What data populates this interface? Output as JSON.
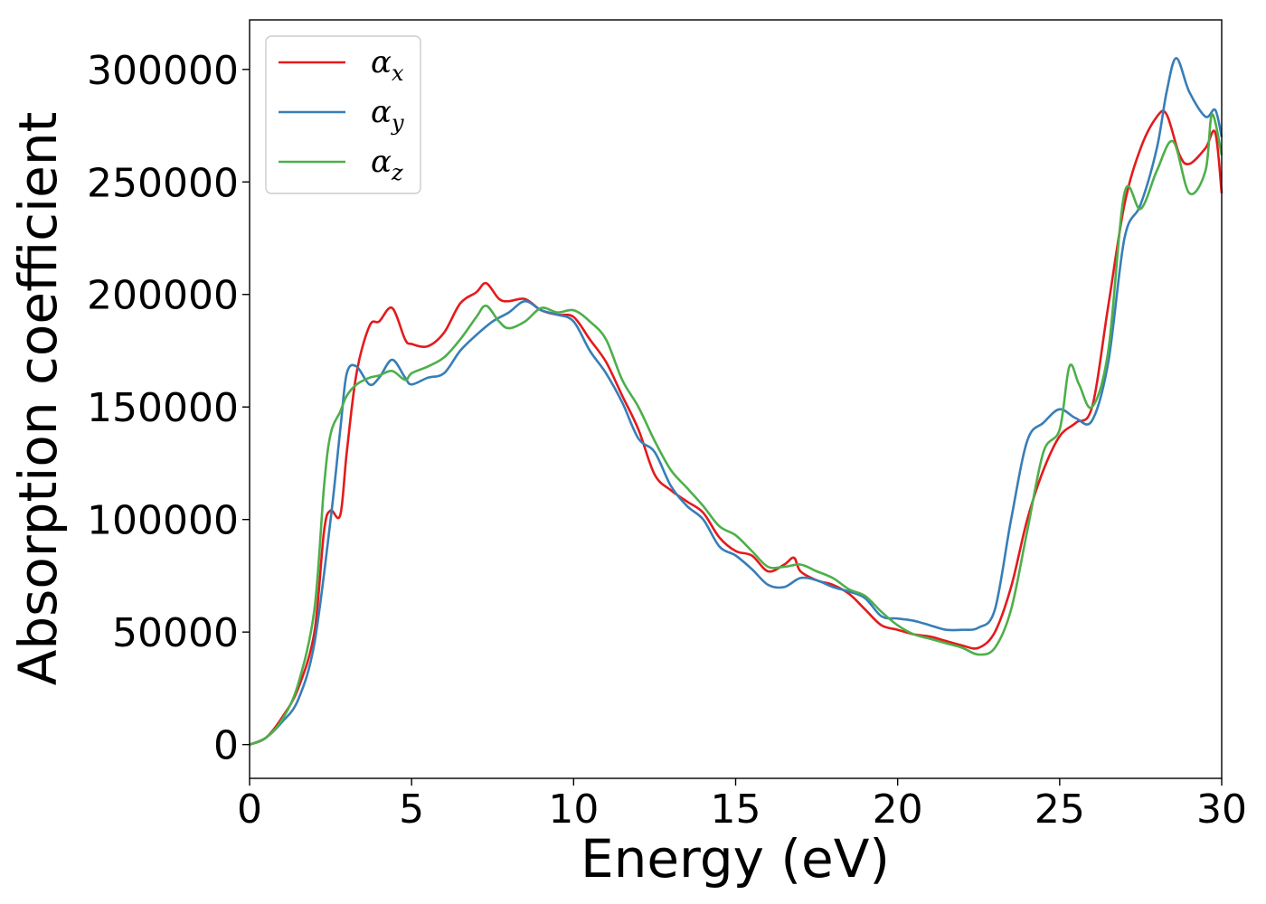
{
  "chart_data": {
    "type": "line",
    "title": "",
    "xlabel": "Energy (eV)",
    "ylabel": "Absorption coefficient",
    "xlim": [
      0,
      30
    ],
    "ylim": [
      -15000,
      322000
    ],
    "xticks": [
      0,
      5,
      10,
      15,
      20,
      25,
      30
    ],
    "yticks": [
      0,
      50000,
      100000,
      150000,
      200000,
      250000,
      300000
    ],
    "grid": false,
    "legend_position": "top-left",
    "series": [
      {
        "name": "αx",
        "label_base": "α",
        "label_sub": "x",
        "color": "#e41a1c",
        "x": [
          0,
          0.5,
          1,
          1.5,
          2,
          2.3,
          2.5,
          2.8,
          3,
          3.3,
          3.7,
          4,
          4.4,
          4.8,
          5,
          5.5,
          6,
          6.5,
          7,
          7.3,
          7.7,
          8,
          8.5,
          9,
          9.5,
          10,
          10.5,
          11,
          11.5,
          12,
          12.5,
          13,
          13.5,
          14,
          14.5,
          15,
          15.5,
          16,
          16.5,
          16.8,
          17,
          17.5,
          18,
          18.5,
          19,
          19.5,
          20,
          20.5,
          21,
          21.5,
          22,
          22.5,
          23,
          23.5,
          24,
          24.5,
          25,
          25.5,
          26,
          26.5,
          27,
          27.5,
          28,
          28.3,
          28.7,
          29,
          29.5,
          29.8,
          30
        ],
        "y": [
          0,
          3000,
          12000,
          25000,
          50000,
          95000,
          104000,
          102000,
          130000,
          165000,
          186000,
          188000,
          194000,
          180000,
          178000,
          177000,
          183000,
          196000,
          201000,
          205000,
          198000,
          197000,
          198000,
          193000,
          191000,
          190000,
          180000,
          170000,
          155000,
          140000,
          120000,
          113000,
          108000,
          103000,
          92000,
          86000,
          84000,
          77000,
          80000,
          83000,
          77000,
          73000,
          71000,
          67000,
          60000,
          53000,
          51000,
          49000,
          48000,
          46000,
          44000,
          43000,
          50000,
          70000,
          100000,
          122000,
          137000,
          143000,
          150000,
          195000,
          240000,
          265000,
          279000,
          280000,
          262000,
          258000,
          265000,
          272000,
          245000
        ]
      },
      {
        "name": "αy",
        "label_base": "α",
        "label_sub": "y",
        "color": "#377eb8",
        "x": [
          0,
          0.5,
          1,
          1.5,
          2,
          2.5,
          2.8,
          3,
          3.3,
          3.7,
          4,
          4.4,
          4.8,
          5,
          5.5,
          6,
          6.5,
          7,
          7.5,
          8,
          8.5,
          9,
          9.5,
          10,
          10.5,
          11,
          11.5,
          12,
          12.5,
          13,
          13.5,
          14,
          14.5,
          15,
          15.5,
          16,
          16.5,
          17,
          17.5,
          18,
          18.5,
          19,
          19.5,
          20,
          20.5,
          21,
          21.5,
          22,
          22.5,
          23,
          23.5,
          24,
          24.5,
          25,
          25.5,
          26,
          26.5,
          27,
          27.5,
          28,
          28.3,
          28.6,
          29,
          29.5,
          29.8,
          30
        ],
        "y": [
          0,
          3000,
          10000,
          20000,
          45000,
          100000,
          140000,
          165000,
          168000,
          160000,
          163000,
          171000,
          163000,
          160000,
          163000,
          165000,
          175000,
          182000,
          188000,
          192000,
          197000,
          193000,
          191000,
          188000,
          175000,
          165000,
          152000,
          136000,
          130000,
          115000,
          106000,
          100000,
          88000,
          84000,
          78000,
          71000,
          70000,
          74000,
          73000,
          70000,
          68000,
          65000,
          57000,
          56000,
          55000,
          53000,
          51000,
          51000,
          52000,
          60000,
          100000,
          135000,
          143000,
          149000,
          145000,
          144000,
          170000,
          225000,
          240000,
          265000,
          290000,
          305000,
          290000,
          279000,
          282000,
          270000
        ]
      },
      {
        "name": "αz",
        "label_base": "α",
        "label_sub": "z",
        "color": "#4daf4a",
        "x": [
          0,
          0.5,
          1,
          1.5,
          2,
          2.3,
          2.5,
          2.8,
          3,
          3.3,
          3.7,
          4,
          4.4,
          4.8,
          5,
          5.5,
          6,
          6.5,
          7,
          7.3,
          7.7,
          8,
          8.5,
          9,
          9.5,
          10,
          10.5,
          11,
          11.5,
          12,
          12.5,
          13,
          13.5,
          14,
          14.5,
          15,
          15.5,
          16,
          16.5,
          17,
          17.5,
          18,
          18.5,
          19,
          19.5,
          20,
          20.5,
          21,
          21.5,
          22,
          22.5,
          23,
          23.5,
          24,
          24.5,
          25,
          25.3,
          25.6,
          26,
          26.5,
          27,
          27.5,
          28,
          28.5,
          29,
          29.5,
          29.7,
          30
        ],
        "y": [
          0,
          3000,
          11000,
          27000,
          60000,
          115000,
          138000,
          148000,
          155000,
          160000,
          163000,
          164000,
          166000,
          162000,
          165000,
          168000,
          172000,
          180000,
          190000,
          195000,
          188000,
          185000,
          188000,
          194000,
          192000,
          193000,
          188000,
          180000,
          162000,
          150000,
          135000,
          122000,
          114000,
          106000,
          97000,
          93000,
          86000,
          79000,
          79000,
          80000,
          77000,
          74000,
          69000,
          66000,
          59000,
          53000,
          49000,
          47000,
          45000,
          43000,
          40000,
          43000,
          60000,
          95000,
          130000,
          140000,
          168000,
          160000,
          150000,
          175000,
          245000,
          238000,
          255000,
          268000,
          245000,
          255000,
          280000,
          262000
        ]
      }
    ]
  }
}
